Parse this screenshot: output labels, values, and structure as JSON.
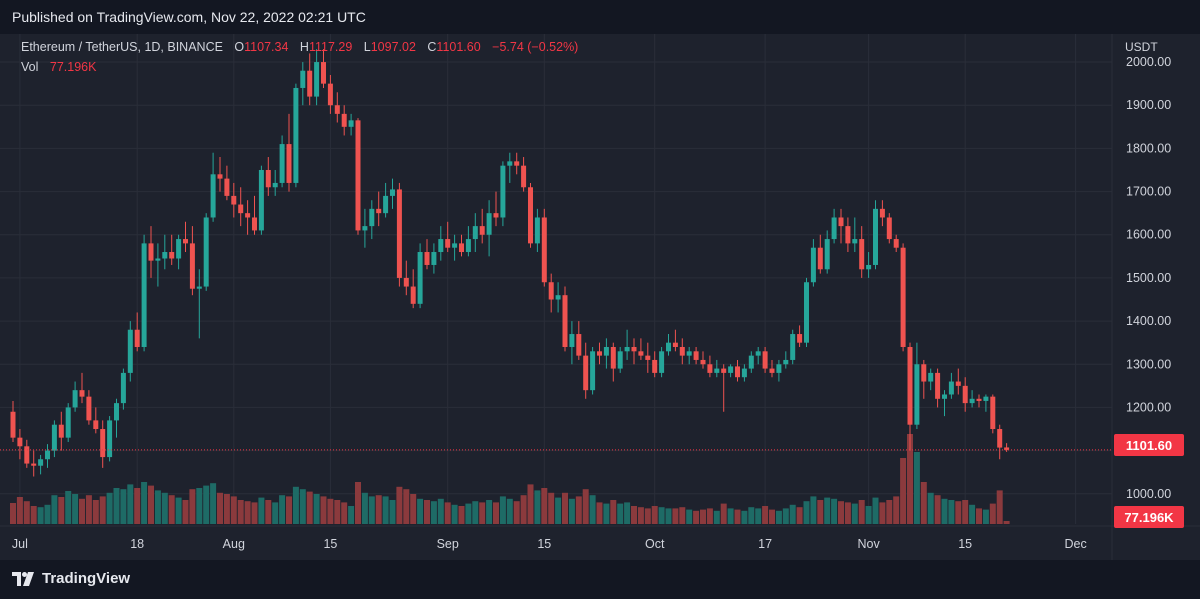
{
  "header": {
    "published": "Published on TradingView.com, Nov 22, 2022 02:21 UTC"
  },
  "legend": {
    "symbol": "Ethereum / TetherUS, 1D, BINANCE",
    "o_label": "O",
    "o_value": "1107.34",
    "h_label": "H",
    "h_value": "1117.29",
    "l_label": "L",
    "l_value": "1097.02",
    "c_label": "C",
    "c_value": "1101.60",
    "change": "−5.74 (−0.52%)",
    "vol_label": "Vol",
    "vol_value": "77.196K"
  },
  "price_axis": {
    "currency": "USDT",
    "last_price_tag": "1101.60",
    "volume_tag": "77.196K"
  },
  "footer": {
    "brand": "TradingView"
  },
  "colors": {
    "up": "#26a69a",
    "down": "#ef5350",
    "up_vol": "#1e6b66",
    "down_vol": "#8b3a3d",
    "background": "#1e222d",
    "tag_red": "#f23645"
  },
  "chart_data": {
    "type": "candlestick",
    "title": "Ethereum / TetherUS, 1D, BINANCE",
    "ylabel": "USDT",
    "ylim": [
      930,
      2065
    ],
    "y_ticks": [
      1000,
      1100,
      1200,
      1300,
      1400,
      1500,
      1600,
      1700,
      1800,
      1900,
      2000
    ],
    "y_tick_labels": [
      "1000.00",
      "",
      "1200.00",
      "1300.00",
      "1400.00",
      "1500.00",
      "1600.00",
      "1700.00",
      "1800.00",
      "1900.00",
      "2000.00"
    ],
    "x_ticks": [
      {
        "label": "Jul",
        "index": 1
      },
      {
        "label": "18",
        "index": 18
      },
      {
        "label": "Aug",
        "index": 32
      },
      {
        "label": "15",
        "index": 46
      },
      {
        "label": "Sep",
        "index": 63
      },
      {
        "label": "15",
        "index": 77
      },
      {
        "label": "Oct",
        "index": 93
      },
      {
        "label": "17",
        "index": 109
      },
      {
        "label": "Nov",
        "index": 124
      },
      {
        "label": "15",
        "index": 138
      },
      {
        "label": "Dec",
        "index": 154
      }
    ],
    "last_close": 1101.6,
    "candles": [
      {
        "o": 1190,
        "h": 1215,
        "l": 1120,
        "c": 1130,
        "v": 35
      },
      {
        "o": 1130,
        "h": 1150,
        "l": 1080,
        "c": 1110,
        "v": 45
      },
      {
        "o": 1110,
        "h": 1125,
        "l": 1060,
        "c": 1070,
        "v": 38
      },
      {
        "o": 1070,
        "h": 1100,
        "l": 1040,
        "c": 1065,
        "v": 30
      },
      {
        "o": 1065,
        "h": 1090,
        "l": 1045,
        "c": 1080,
        "v": 28
      },
      {
        "o": 1080,
        "h": 1115,
        "l": 1060,
        "c": 1100,
        "v": 32
      },
      {
        "o": 1100,
        "h": 1170,
        "l": 1085,
        "c": 1160,
        "v": 48
      },
      {
        "o": 1160,
        "h": 1190,
        "l": 1100,
        "c": 1130,
        "v": 45
      },
      {
        "o": 1130,
        "h": 1210,
        "l": 1120,
        "c": 1200,
        "v": 55
      },
      {
        "o": 1200,
        "h": 1260,
        "l": 1190,
        "c": 1240,
        "v": 50
      },
      {
        "o": 1240,
        "h": 1280,
        "l": 1210,
        "c": 1225,
        "v": 42
      },
      {
        "o": 1225,
        "h": 1240,
        "l": 1160,
        "c": 1170,
        "v": 48
      },
      {
        "o": 1170,
        "h": 1200,
        "l": 1140,
        "c": 1150,
        "v": 40
      },
      {
        "o": 1150,
        "h": 1170,
        "l": 1060,
        "c": 1085,
        "v": 46
      },
      {
        "o": 1085,
        "h": 1180,
        "l": 1075,
        "c": 1170,
        "v": 52
      },
      {
        "o": 1170,
        "h": 1220,
        "l": 1130,
        "c": 1210,
        "v": 60
      },
      {
        "o": 1210,
        "h": 1290,
        "l": 1195,
        "c": 1280,
        "v": 58
      },
      {
        "o": 1280,
        "h": 1400,
        "l": 1260,
        "c": 1380,
        "v": 66
      },
      {
        "o": 1380,
        "h": 1420,
        "l": 1330,
        "c": 1340,
        "v": 60
      },
      {
        "o": 1340,
        "h": 1600,
        "l": 1330,
        "c": 1580,
        "v": 70
      },
      {
        "o": 1580,
        "h": 1620,
        "l": 1500,
        "c": 1540,
        "v": 64
      },
      {
        "o": 1540,
        "h": 1580,
        "l": 1480,
        "c": 1545,
        "v": 56
      },
      {
        "o": 1545,
        "h": 1600,
        "l": 1520,
        "c": 1560,
        "v": 52
      },
      {
        "o": 1560,
        "h": 1600,
        "l": 1530,
        "c": 1545,
        "v": 48
      },
      {
        "o": 1545,
        "h": 1600,
        "l": 1520,
        "c": 1590,
        "v": 44
      },
      {
        "o": 1590,
        "h": 1630,
        "l": 1560,
        "c": 1580,
        "v": 40
      },
      {
        "o": 1580,
        "h": 1620,
        "l": 1460,
        "c": 1475,
        "v": 58
      },
      {
        "o": 1475,
        "h": 1520,
        "l": 1360,
        "c": 1480,
        "v": 60
      },
      {
        "o": 1480,
        "h": 1650,
        "l": 1470,
        "c": 1640,
        "v": 64
      },
      {
        "o": 1640,
        "h": 1790,
        "l": 1630,
        "c": 1740,
        "v": 68
      },
      {
        "o": 1740,
        "h": 1780,
        "l": 1700,
        "c": 1730,
        "v": 52
      },
      {
        "o": 1730,
        "h": 1760,
        "l": 1680,
        "c": 1690,
        "v": 50
      },
      {
        "o": 1690,
        "h": 1720,
        "l": 1640,
        "c": 1670,
        "v": 46
      },
      {
        "o": 1670,
        "h": 1710,
        "l": 1620,
        "c": 1650,
        "v": 40
      },
      {
        "o": 1650,
        "h": 1680,
        "l": 1600,
        "c": 1640,
        "v": 38
      },
      {
        "o": 1640,
        "h": 1690,
        "l": 1600,
        "c": 1610,
        "v": 36
      },
      {
        "o": 1610,
        "h": 1760,
        "l": 1600,
        "c": 1750,
        "v": 44
      },
      {
        "o": 1750,
        "h": 1780,
        "l": 1690,
        "c": 1710,
        "v": 40
      },
      {
        "o": 1710,
        "h": 1750,
        "l": 1690,
        "c": 1720,
        "v": 36
      },
      {
        "o": 1720,
        "h": 1830,
        "l": 1710,
        "c": 1810,
        "v": 48
      },
      {
        "o": 1810,
        "h": 1880,
        "l": 1700,
        "c": 1720,
        "v": 46
      },
      {
        "o": 1720,
        "h": 1950,
        "l": 1710,
        "c": 1940,
        "v": 62
      },
      {
        "o": 1940,
        "h": 2000,
        "l": 1900,
        "c": 1980,
        "v": 58
      },
      {
        "o": 1980,
        "h": 2020,
        "l": 1900,
        "c": 1920,
        "v": 54
      },
      {
        "o": 1920,
        "h": 2030,
        "l": 1900,
        "c": 2000,
        "v": 50
      },
      {
        "o": 2000,
        "h": 2030,
        "l": 1940,
        "c": 1950,
        "v": 46
      },
      {
        "o": 1950,
        "h": 1970,
        "l": 1880,
        "c": 1900,
        "v": 42
      },
      {
        "o": 1900,
        "h": 1930,
        "l": 1860,
        "c": 1880,
        "v": 40
      },
      {
        "o": 1880,
        "h": 1900,
        "l": 1830,
        "c": 1850,
        "v": 36
      },
      {
        "o": 1850,
        "h": 1880,
        "l": 1830,
        "c": 1865,
        "v": 30
      },
      {
        "o": 1865,
        "h": 1870,
        "l": 1600,
        "c": 1610,
        "v": 70
      },
      {
        "o": 1610,
        "h": 1660,
        "l": 1570,
        "c": 1620,
        "v": 52
      },
      {
        "o": 1620,
        "h": 1680,
        "l": 1590,
        "c": 1660,
        "v": 46
      },
      {
        "o": 1660,
        "h": 1700,
        "l": 1620,
        "c": 1650,
        "v": 48
      },
      {
        "o": 1650,
        "h": 1720,
        "l": 1640,
        "c": 1690,
        "v": 46
      },
      {
        "o": 1690,
        "h": 1730,
        "l": 1660,
        "c": 1705,
        "v": 40
      },
      {
        "o": 1705,
        "h": 1720,
        "l": 1480,
        "c": 1500,
        "v": 62
      },
      {
        "o": 1500,
        "h": 1540,
        "l": 1460,
        "c": 1480,
        "v": 58
      },
      {
        "o": 1480,
        "h": 1520,
        "l": 1430,
        "c": 1440,
        "v": 50
      },
      {
        "o": 1440,
        "h": 1580,
        "l": 1430,
        "c": 1560,
        "v": 42
      },
      {
        "o": 1560,
        "h": 1590,
        "l": 1520,
        "c": 1530,
        "v": 40
      },
      {
        "o": 1530,
        "h": 1580,
        "l": 1510,
        "c": 1560,
        "v": 38
      },
      {
        "o": 1560,
        "h": 1620,
        "l": 1540,
        "c": 1590,
        "v": 42
      },
      {
        "o": 1590,
        "h": 1630,
        "l": 1560,
        "c": 1570,
        "v": 36
      },
      {
        "o": 1570,
        "h": 1600,
        "l": 1540,
        "c": 1580,
        "v": 32
      },
      {
        "o": 1580,
        "h": 1600,
        "l": 1550,
        "c": 1560,
        "v": 30
      },
      {
        "o": 1560,
        "h": 1620,
        "l": 1550,
        "c": 1590,
        "v": 34
      },
      {
        "o": 1590,
        "h": 1650,
        "l": 1560,
        "c": 1620,
        "v": 38
      },
      {
        "o": 1620,
        "h": 1660,
        "l": 1580,
        "c": 1600,
        "v": 36
      },
      {
        "o": 1600,
        "h": 1680,
        "l": 1550,
        "c": 1650,
        "v": 40
      },
      {
        "o": 1650,
        "h": 1700,
        "l": 1620,
        "c": 1640,
        "v": 36
      },
      {
        "o": 1640,
        "h": 1770,
        "l": 1620,
        "c": 1760,
        "v": 46
      },
      {
        "o": 1760,
        "h": 1790,
        "l": 1720,
        "c": 1770,
        "v": 42
      },
      {
        "o": 1770,
        "h": 1790,
        "l": 1740,
        "c": 1760,
        "v": 38
      },
      {
        "o": 1760,
        "h": 1780,
        "l": 1700,
        "c": 1710,
        "v": 48
      },
      {
        "o": 1710,
        "h": 1720,
        "l": 1570,
        "c": 1580,
        "v": 66
      },
      {
        "o": 1580,
        "h": 1660,
        "l": 1560,
        "c": 1640,
        "v": 56
      },
      {
        "o": 1640,
        "h": 1660,
        "l": 1480,
        "c": 1490,
        "v": 60
      },
      {
        "o": 1490,
        "h": 1510,
        "l": 1420,
        "c": 1450,
        "v": 52
      },
      {
        "o": 1450,
        "h": 1490,
        "l": 1420,
        "c": 1460,
        "v": 44
      },
      {
        "o": 1460,
        "h": 1480,
        "l": 1330,
        "c": 1340,
        "v": 52
      },
      {
        "o": 1340,
        "h": 1400,
        "l": 1300,
        "c": 1370,
        "v": 42
      },
      {
        "o": 1370,
        "h": 1400,
        "l": 1310,
        "c": 1320,
        "v": 46
      },
      {
        "o": 1320,
        "h": 1350,
        "l": 1220,
        "c": 1240,
        "v": 58
      },
      {
        "o": 1240,
        "h": 1340,
        "l": 1230,
        "c": 1330,
        "v": 48
      },
      {
        "o": 1330,
        "h": 1350,
        "l": 1300,
        "c": 1320,
        "v": 36
      },
      {
        "o": 1320,
        "h": 1360,
        "l": 1290,
        "c": 1340,
        "v": 34
      },
      {
        "o": 1340,
        "h": 1350,
        "l": 1260,
        "c": 1290,
        "v": 40
      },
      {
        "o": 1290,
        "h": 1340,
        "l": 1280,
        "c": 1330,
        "v": 34
      },
      {
        "o": 1330,
        "h": 1380,
        "l": 1310,
        "c": 1340,
        "v": 36
      },
      {
        "o": 1340,
        "h": 1360,
        "l": 1300,
        "c": 1330,
        "v": 30
      },
      {
        "o": 1330,
        "h": 1360,
        "l": 1310,
        "c": 1320,
        "v": 28
      },
      {
        "o": 1320,
        "h": 1350,
        "l": 1280,
        "c": 1310,
        "v": 26
      },
      {
        "o": 1310,
        "h": 1330,
        "l": 1270,
        "c": 1280,
        "v": 30
      },
      {
        "o": 1280,
        "h": 1340,
        "l": 1270,
        "c": 1330,
        "v": 28
      },
      {
        "o": 1330,
        "h": 1370,
        "l": 1320,
        "c": 1350,
        "v": 26
      },
      {
        "o": 1350,
        "h": 1380,
        "l": 1330,
        "c": 1340,
        "v": 26
      },
      {
        "o": 1340,
        "h": 1360,
        "l": 1300,
        "c": 1320,
        "v": 28
      },
      {
        "o": 1320,
        "h": 1340,
        "l": 1300,
        "c": 1330,
        "v": 24
      },
      {
        "o": 1330,
        "h": 1340,
        "l": 1300,
        "c": 1310,
        "v": 22
      },
      {
        "o": 1310,
        "h": 1330,
        "l": 1290,
        "c": 1300,
        "v": 24
      },
      {
        "o": 1300,
        "h": 1320,
        "l": 1270,
        "c": 1280,
        "v": 26
      },
      {
        "o": 1280,
        "h": 1310,
        "l": 1270,
        "c": 1290,
        "v": 22
      },
      {
        "o": 1290,
        "h": 1300,
        "l": 1190,
        "c": 1280,
        "v": 34
      },
      {
        "o": 1280,
        "h": 1300,
        "l": 1270,
        "c": 1295,
        "v": 26
      },
      {
        "o": 1295,
        "h": 1310,
        "l": 1260,
        "c": 1270,
        "v": 24
      },
      {
        "o": 1270,
        "h": 1300,
        "l": 1260,
        "c": 1290,
        "v": 22
      },
      {
        "o": 1290,
        "h": 1330,
        "l": 1280,
        "c": 1320,
        "v": 28
      },
      {
        "o": 1320,
        "h": 1340,
        "l": 1300,
        "c": 1330,
        "v": 26
      },
      {
        "o": 1330,
        "h": 1340,
        "l": 1280,
        "c": 1290,
        "v": 30
      },
      {
        "o": 1290,
        "h": 1310,
        "l": 1270,
        "c": 1280,
        "v": 24
      },
      {
        "o": 1280,
        "h": 1310,
        "l": 1260,
        "c": 1300,
        "v": 22
      },
      {
        "o": 1300,
        "h": 1330,
        "l": 1290,
        "c": 1310,
        "v": 26
      },
      {
        "o": 1310,
        "h": 1380,
        "l": 1300,
        "c": 1370,
        "v": 32
      },
      {
        "o": 1370,
        "h": 1390,
        "l": 1340,
        "c": 1350,
        "v": 28
      },
      {
        "o": 1350,
        "h": 1500,
        "l": 1340,
        "c": 1490,
        "v": 38
      },
      {
        "o": 1490,
        "h": 1590,
        "l": 1480,
        "c": 1570,
        "v": 46
      },
      {
        "o": 1570,
        "h": 1600,
        "l": 1510,
        "c": 1520,
        "v": 40
      },
      {
        "o": 1520,
        "h": 1610,
        "l": 1510,
        "c": 1590,
        "v": 44
      },
      {
        "o": 1590,
        "h": 1660,
        "l": 1580,
        "c": 1640,
        "v": 42
      },
      {
        "o": 1640,
        "h": 1660,
        "l": 1580,
        "c": 1620,
        "v": 38
      },
      {
        "o": 1620,
        "h": 1640,
        "l": 1560,
        "c": 1580,
        "v": 36
      },
      {
        "o": 1580,
        "h": 1640,
        "l": 1560,
        "c": 1590,
        "v": 34
      },
      {
        "o": 1590,
        "h": 1620,
        "l": 1500,
        "c": 1520,
        "v": 40
      },
      {
        "o": 1520,
        "h": 1560,
        "l": 1500,
        "c": 1530,
        "v": 30
      },
      {
        "o": 1530,
        "h": 1680,
        "l": 1520,
        "c": 1660,
        "v": 44
      },
      {
        "o": 1660,
        "h": 1680,
        "l": 1620,
        "c": 1640,
        "v": 36
      },
      {
        "o": 1640,
        "h": 1650,
        "l": 1580,
        "c": 1590,
        "v": 40
      },
      {
        "o": 1590,
        "h": 1600,
        "l": 1560,
        "c": 1570,
        "v": 46
      },
      {
        "o": 1570,
        "h": 1580,
        "l": 1330,
        "c": 1340,
        "v": 110
      },
      {
        "o": 1340,
        "h": 1350,
        "l": 1100,
        "c": 1160,
        "v": 150
      },
      {
        "o": 1160,
        "h": 1350,
        "l": 1150,
        "c": 1300,
        "v": 120
      },
      {
        "o": 1300,
        "h": 1310,
        "l": 1220,
        "c": 1260,
        "v": 70
      },
      {
        "o": 1260,
        "h": 1290,
        "l": 1240,
        "c": 1280,
        "v": 52
      },
      {
        "o": 1280,
        "h": 1290,
        "l": 1200,
        "c": 1220,
        "v": 48
      },
      {
        "o": 1220,
        "h": 1240,
        "l": 1180,
        "c": 1230,
        "v": 42
      },
      {
        "o": 1230,
        "h": 1280,
        "l": 1220,
        "c": 1260,
        "v": 40
      },
      {
        "o": 1260,
        "h": 1290,
        "l": 1230,
        "c": 1250,
        "v": 38
      },
      {
        "o": 1250,
        "h": 1270,
        "l": 1190,
        "c": 1210,
        "v": 40
      },
      {
        "o": 1210,
        "h": 1240,
        "l": 1200,
        "c": 1220,
        "v": 32
      },
      {
        "o": 1220,
        "h": 1230,
        "l": 1200,
        "c": 1215,
        "v": 26
      },
      {
        "o": 1215,
        "h": 1230,
        "l": 1190,
        "c": 1225,
        "v": 24
      },
      {
        "o": 1225,
        "h": 1230,
        "l": 1140,
        "c": 1150,
        "v": 34
      },
      {
        "o": 1150,
        "h": 1160,
        "l": 1080,
        "c": 1107,
        "v": 56
      },
      {
        "o": 1107.34,
        "h": 1117.29,
        "l": 1097.02,
        "c": 1101.6,
        "v": 5
      }
    ]
  }
}
